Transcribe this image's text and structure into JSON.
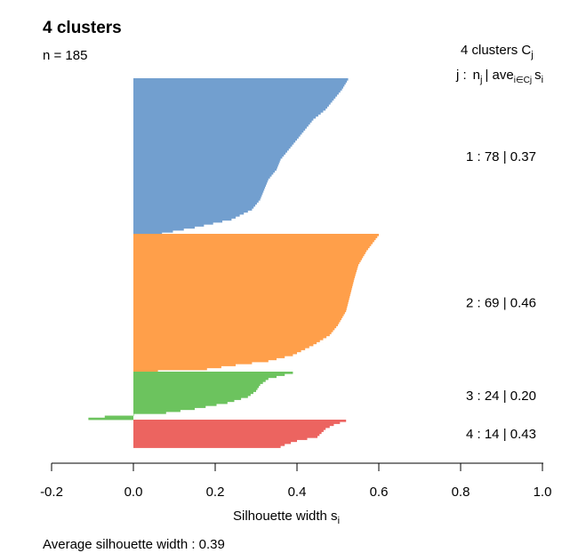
{
  "chart_data": {
    "type": "silhouette",
    "title": "4 clusters",
    "n_label": "n = 185",
    "legend_header": "4 clusters C",
    "legend_header_sub": "j",
    "legend_colhead": {
      "j": "j :",
      "n": "n",
      "n_sub": "j",
      "ave": "| ave",
      "ave_sub": "i∈Cj",
      "s": "s",
      "s_sub": "i"
    },
    "clusters": [
      {
        "j": 1,
        "label": "1 :   78  |  0.37",
        "n": 78,
        "ave": 0.37,
        "color": "#729FCF",
        "keys": [
          [
            0,
            0.525
          ],
          [
            5,
            0.51
          ],
          [
            10,
            0.49
          ],
          [
            15,
            0.47
          ],
          [
            20,
            0.44
          ],
          [
            25,
            0.42
          ],
          [
            30,
            0.4
          ],
          [
            35,
            0.38
          ],
          [
            40,
            0.36
          ],
          [
            45,
            0.35
          ],
          [
            50,
            0.33
          ],
          [
            55,
            0.32
          ],
          [
            60,
            0.31
          ],
          [
            65,
            0.29
          ],
          [
            70,
            0.24
          ],
          [
            74,
            0.15
          ],
          [
            77,
            0.07
          ]
        ]
      },
      {
        "j": 2,
        "label": "2 :   69  |  0.46",
        "n": 69,
        "ave": 0.46,
        "color": "#FF9F4A",
        "keys": [
          [
            0,
            0.6
          ],
          [
            8,
            0.57
          ],
          [
            15,
            0.55
          ],
          [
            22,
            0.54
          ],
          [
            30,
            0.53
          ],
          [
            38,
            0.52
          ],
          [
            45,
            0.5
          ],
          [
            50,
            0.48
          ],
          [
            55,
            0.44
          ],
          [
            60,
            0.39
          ],
          [
            63,
            0.33
          ],
          [
            65,
            0.25
          ],
          [
            67,
            0.18
          ],
          [
            68,
            0.06
          ],
          [
            69,
            -0.17
          ]
        ]
      },
      {
        "j": 3,
        "label": "3 :   24  |  0.20",
        "n": 24,
        "ave": 0.2,
        "color": "#6CC35E",
        "keys": [
          [
            0,
            0.39
          ],
          [
            3,
            0.33
          ],
          [
            6,
            0.31
          ],
          [
            9,
            0.3
          ],
          [
            12,
            0.28
          ],
          [
            15,
            0.23
          ],
          [
            18,
            0.15
          ],
          [
            20,
            0.08
          ],
          [
            21,
            0.0
          ],
          [
            22,
            -0.07
          ],
          [
            23,
            -0.11
          ],
          [
            24,
            -0.22
          ]
        ]
      },
      {
        "j": 4,
        "label": "4 :   14  |  0.43",
        "n": 14,
        "ave": 0.43,
        "color": "#EC6460",
        "keys": [
          [
            0,
            0.52
          ],
          [
            2,
            0.49
          ],
          [
            4,
            0.47
          ],
          [
            6,
            0.46
          ],
          [
            8,
            0.45
          ],
          [
            10,
            0.4
          ],
          [
            12,
            0.37
          ],
          [
            14,
            0.35
          ]
        ]
      }
    ],
    "xlim": [
      -0.2,
      1.0
    ],
    "xticks": [
      "-0.2",
      "0.0",
      "0.2",
      "0.4",
      "0.6",
      "0.8",
      "1.0"
    ],
    "xlabel": "Silhouette width s",
    "xlabel_sub": "i",
    "footer": "Average silhouette width :  0.39",
    "grid": false
  }
}
